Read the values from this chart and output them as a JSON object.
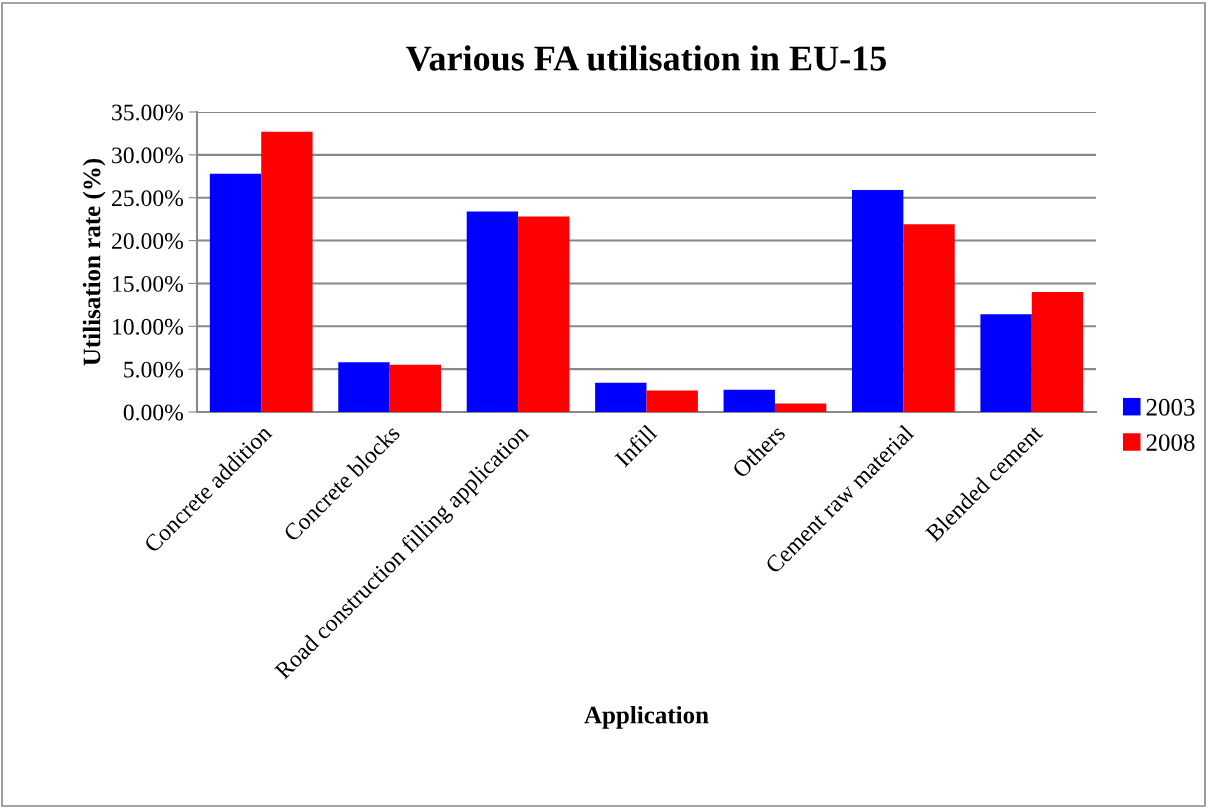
{
  "chart_data": {
    "type": "bar",
    "title": "Various FA utilisation in EU-15",
    "xlabel": "Application",
    "ylabel": "Utilisation rate (%)",
    "categories": [
      "Concrete addition",
      "Concrete blocks",
      "Road construction filling application",
      "Infill",
      "Others",
      "Cement raw material",
      "Blended cement"
    ],
    "series": [
      {
        "name": "2003",
        "color": "#0000ff",
        "values": [
          27.8,
          5.8,
          23.4,
          3.4,
          2.6,
          25.9,
          11.4
        ]
      },
      {
        "name": "2008",
        "color": "#ff0000",
        "values": [
          32.7,
          5.5,
          22.8,
          2.5,
          1.0,
          21.9,
          14.0
        ]
      }
    ],
    "ylim": [
      0,
      35
    ],
    "yticks": [
      {
        "value": 0,
        "label": "0.00%"
      },
      {
        "value": 5,
        "label": "5.00%"
      },
      {
        "value": 10,
        "label": "10.00%"
      },
      {
        "value": 15,
        "label": "15.00%"
      },
      {
        "value": 20,
        "label": "20.00%"
      },
      {
        "value": 25,
        "label": "25.00%"
      },
      {
        "value": 30,
        "label": "30.00%"
      },
      {
        "value": 35,
        "label": "35.00%"
      }
    ],
    "grid": "y",
    "legend": "right"
  }
}
